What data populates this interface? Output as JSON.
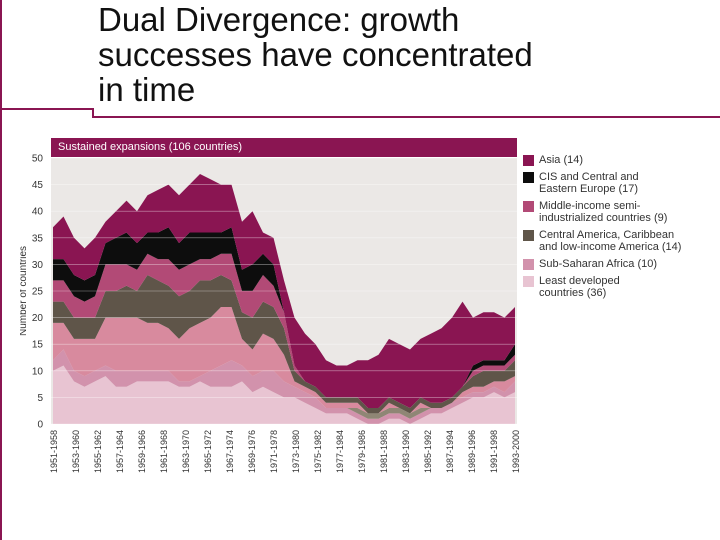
{
  "slide": {
    "title": "Dual Divergence: growth\nsuccesses have concentrated\nin time"
  },
  "colors": {
    "frame": "#8a1552",
    "grid": "#ffffff",
    "panel": "#ebe8e6"
  },
  "chart_data": {
    "type": "area",
    "stacked": true,
    "title": "Sustained expansions (106 countries)",
    "xlabel": "",
    "ylabel": "Number of countries",
    "ylim": [
      0,
      50
    ],
    "yticks": [
      0,
      5,
      10,
      15,
      20,
      25,
      30,
      35,
      40,
      45,
      50
    ],
    "grid": true,
    "legend_position": "right",
    "categories": [
      "1951-1958",
      "1953-1960",
      "1955-1962",
      "1957-1964",
      "1959-1966",
      "1961-1968",
      "1963-1970",
      "1965-1972",
      "1967-1974",
      "1969-1976",
      "1971-1978",
      "1973-1980",
      "1975-1982",
      "1977-1984",
      "1979-1986",
      "1981-1988",
      "1983-1990",
      "1985-1992",
      "1987-1994",
      "1989-1996",
      "1991-1998",
      "1993-2000"
    ],
    "x": [
      0,
      0.5,
      1,
      1.5,
      2,
      2.5,
      3,
      3.5,
      4,
      4.5,
      5,
      5.5,
      6,
      6.5,
      7,
      7.5,
      8,
      8.5,
      9,
      9.5,
      10,
      10.5,
      11,
      11.5,
      12,
      12.5,
      13,
      13.5,
      14,
      14.5,
      15,
      15.5,
      16,
      16.5,
      17,
      17.5,
      18,
      18.5,
      19,
      19.5,
      20,
      20.5,
      21,
      21.5,
      22
    ],
    "series": [
      {
        "name": "Least developed countries (36)",
        "color": "#e8c4d2",
        "values": [
          10,
          11,
          8,
          7,
          8,
          9,
          7,
          7,
          8,
          8,
          8,
          8,
          7,
          7,
          8,
          7,
          7,
          7,
          8,
          6,
          7,
          6,
          5,
          5,
          4,
          3,
          2,
          2,
          2,
          1,
          0,
          0,
          1,
          1,
          0,
          1,
          2,
          2,
          3,
          4,
          5,
          5,
          6,
          5,
          6
        ]
      },
      {
        "name": "Sub-Saharan Africa (10)",
        "color": "#d292ac",
        "values": [
          2,
          3,
          2,
          2,
          2,
          2,
          3,
          3,
          2,
          2,
          2,
          2,
          1,
          1,
          1,
          3,
          4,
          5,
          3,
          3,
          3,
          4,
          3,
          2,
          2,
          2,
          1,
          1,
          1,
          1,
          1,
          1,
          1,
          1,
          1,
          1,
          1,
          1,
          1,
          1,
          1,
          1,
          1,
          1,
          2
        ]
      },
      {
        "name": "Central America, Caribbean and low-income America (14)",
        "color": "#8f8675",
        "values": [
          0,
          0,
          0,
          0,
          0,
          0,
          0,
          0,
          0,
          0,
          0,
          0,
          0,
          0,
          0,
          0,
          0,
          0,
          0,
          0,
          0,
          0,
          0,
          0,
          0,
          0,
          0,
          0,
          0,
          1,
          1,
          1,
          1,
          1,
          1,
          1,
          0,
          0,
          0,
          0,
          0,
          0,
          0,
          0,
          0
        ]
      },
      {
        "name": "Middle-income semi-industrialized countries (9)",
        "color": "#d88a9e",
        "values": [
          7,
          5,
          6,
          7,
          6,
          9,
          10,
          10,
          10,
          9,
          9,
          8,
          8,
          10,
          10,
          10,
          11,
          10,
          5,
          5,
          7,
          6,
          5,
          1,
          1,
          1,
          1,
          1,
          1,
          1,
          0,
          0,
          1,
          0,
          0,
          1,
          0,
          0,
          0,
          1,
          1,
          1,
          1,
          2,
          1
        ]
      },
      {
        "name": "Central America, Caribbean and low-income America (14)",
        "color": "#5f5549",
        "values": [
          4,
          4,
          4,
          4,
          4,
          5,
          5,
          6,
          5,
          9,
          8,
          8,
          8,
          7,
          8,
          7,
          6,
          5,
          5,
          6,
          6,
          6,
          5,
          2,
          1,
          1,
          1,
          1,
          1,
          1,
          1,
          1,
          1,
          1,
          1,
          1,
          1,
          1,
          1,
          1,
          2,
          3,
          2,
          2,
          3
        ]
      },
      {
        "name": "Middle-income semi-industrialized countries (9)",
        "color": "#b24a76",
        "values": [
          4,
          4,
          4,
          3,
          4,
          5,
          5,
          4,
          4,
          4,
          4,
          5,
          5,
          5,
          4,
          4,
          4,
          5,
          4,
          5,
          5,
          4,
          3,
          1,
          0,
          0,
          0,
          0,
          0,
          0,
          0,
          0,
          0,
          0,
          0,
          0,
          0,
          0,
          0,
          0,
          1,
          1,
          1,
          1,
          1
        ]
      },
      {
        "name": "CIS and Central and Eastern Europe (17)",
        "color": "#0d0d0d",
        "values": [
          4,
          4,
          4,
          4,
          4,
          4,
          5,
          6,
          5,
          4,
          5,
          6,
          5,
          6,
          5,
          5,
          4,
          5,
          4,
          5,
          4,
          4,
          0,
          0,
          0,
          0,
          0,
          0,
          0,
          0,
          0,
          0,
          0,
          0,
          0,
          0,
          0,
          0,
          0,
          0,
          1,
          1,
          1,
          1,
          2
        ]
      },
      {
        "name": "Asia (14)",
        "color": "#8a1552",
        "values": [
          6,
          8,
          7,
          6,
          7,
          4,
          5,
          6,
          6,
          7,
          8,
          8,
          9,
          9,
          11,
          10,
          9,
          8,
          9,
          10,
          4,
          5,
          6,
          9,
          9,
          8,
          7,
          6,
          6,
          7,
          9,
          10,
          11,
          11,
          11,
          11,
          13,
          14,
          15,
          16,
          9,
          9,
          9,
          8,
          7
        ]
      }
    ],
    "legend": [
      {
        "label": "Asia (14)",
        "color": "#8a1552"
      },
      {
        "label": "CIS and Central and\nEastern Europe (17)",
        "color": "#0d0d0d"
      },
      {
        "label": "Middle-income semi-\nindustrialized countries (9)",
        "color": "#b24a76"
      },
      {
        "label": "Central America, Caribbean\nand low-income America (14)",
        "color": "#5f5549"
      },
      {
        "label": "Sub-Saharan Africa (10)",
        "color": "#d292ac"
      },
      {
        "label": "Least developed\ncountries (36)",
        "color": "#e8c4d2"
      }
    ]
  }
}
